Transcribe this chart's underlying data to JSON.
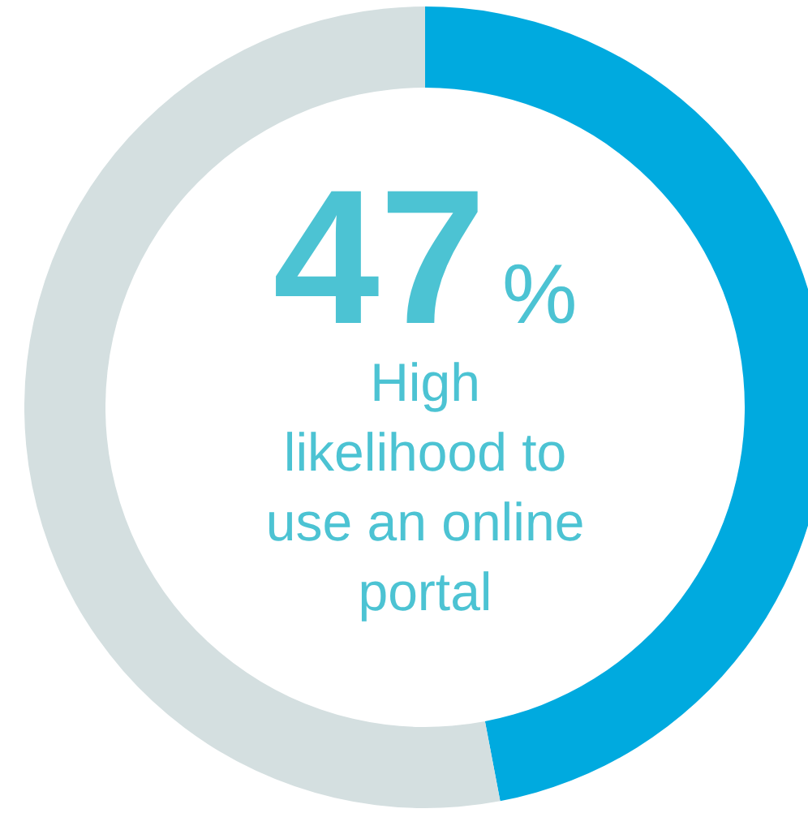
{
  "chart_data": {
    "type": "donut",
    "categories": [
      null,
      null
    ],
    "values": [
      47,
      53
    ],
    "colors": [
      "#00aadf",
      "#d4dfe0"
    ],
    "value_labels": [
      "47%",
      null
    ],
    "annotations": [
      "High likelihood to use an online portal"
    ]
  }
}
